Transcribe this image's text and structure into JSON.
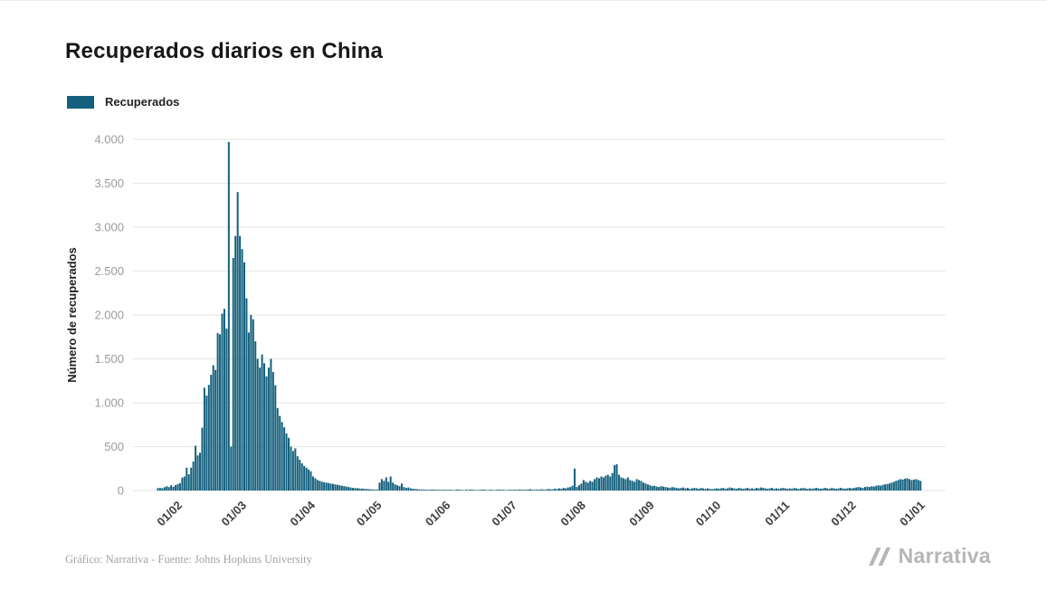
{
  "page": {
    "background": "#ffffff"
  },
  "header": {
    "title": "Recuperados diarios en China"
  },
  "legend": {
    "items": [
      {
        "label": "Recuperados",
        "color": "#14607e"
      }
    ]
  },
  "footer": {
    "credit": "Gráfico: Narrativa - Fuente: Johns Hopkins University"
  },
  "branding": {
    "logo_text": "Narrativa"
  },
  "chart_data": {
    "type": "bar",
    "title": "Recuperados diarios en China",
    "xlabel": "",
    "ylabel": "Número de recuperados",
    "ylim": [
      0,
      4000
    ],
    "grid": "horizontal",
    "legend_position": "top-left",
    "bar_color": "#14607e",
    "x_unit": "day",
    "y_ticks": [
      {
        "value": 0,
        "label": "0"
      },
      {
        "value": 500,
        "label": "500"
      },
      {
        "value": 1000,
        "label": "1.000"
      },
      {
        "value": 1500,
        "label": "1.500"
      },
      {
        "value": 2000,
        "label": "2.000"
      },
      {
        "value": 2500,
        "label": "2.500"
      },
      {
        "value": 3000,
        "label": "3.000"
      },
      {
        "value": 3500,
        "label": "3.500"
      },
      {
        "value": 4000,
        "label": "4.000"
      }
    ],
    "x_ticks": [
      {
        "index": 11,
        "label": "01/02"
      },
      {
        "index": 40,
        "label": "01/03"
      },
      {
        "index": 71,
        "label": "01/04"
      },
      {
        "index": 101,
        "label": "01/05"
      },
      {
        "index": 132,
        "label": "01/06"
      },
      {
        "index": 162,
        "label": "01/07"
      },
      {
        "index": 193,
        "label": "01/08"
      },
      {
        "index": 224,
        "label": "01/09"
      },
      {
        "index": 254,
        "label": "01/10"
      },
      {
        "index": 285,
        "label": "01/11"
      },
      {
        "index": 315,
        "label": "01/12"
      },
      {
        "index": 346,
        "label": "01/01"
      }
    ],
    "series": [
      {
        "name": "Recuperados",
        "values": [
          0,
          28,
          30,
          26,
          38,
          49,
          39,
          60,
          43,
          62,
          72,
          85,
          147,
          160,
          260,
          185,
          260,
          330,
          510,
          400,
          430,
          716,
          1171,
          1081,
          1203,
          1318,
          1427,
          1373,
          1795,
          1779,
          2015,
          2070,
          1844,
          3970,
          500,
          2650,
          2900,
          3400,
          2900,
          2750,
          2600,
          2190,
          1800,
          2000,
          1950,
          1700,
          1500,
          1400,
          1550,
          1450,
          1300,
          1400,
          1500,
          1350,
          1200,
          940,
          850,
          780,
          720,
          650,
          600,
          500,
          450,
          480,
          390,
          350,
          310,
          280,
          260,
          240,
          220,
          160,
          140,
          120,
          110,
          100,
          95,
          90,
          85,
          80,
          75,
          70,
          65,
          60,
          55,
          50,
          45,
          40,
          35,
          30,
          28,
          26,
          24,
          22,
          20,
          18,
          16,
          14,
          12,
          10,
          10,
          90,
          130,
          110,
          150,
          100,
          160,
          90,
          70,
          60,
          50,
          80,
          40,
          30,
          35,
          25,
          20,
          18,
          15,
          12,
          10,
          12,
          10,
          8,
          10,
          12,
          10,
          8,
          10,
          8,
          10,
          8,
          8,
          10,
          6,
          8,
          12,
          10,
          8,
          6,
          10,
          8,
          12,
          10,
          8,
          6,
          8,
          10,
          12,
          8,
          6,
          10,
          8,
          6,
          10,
          12,
          8,
          10,
          6,
          8,
          10,
          8,
          10,
          8,
          12,
          10,
          8,
          10,
          12,
          15,
          10,
          8,
          12,
          10,
          15,
          12,
          10,
          18,
          15,
          12,
          20,
          18,
          25,
          20,
          30,
          25,
          35,
          40,
          55,
          250,
          40,
          60,
          80,
          120,
          100,
          90,
          110,
          100,
          130,
          150,
          140,
          160,
          150,
          170,
          180,
          160,
          200,
          290,
          300,
          180,
          150,
          140,
          130,
          150,
          120,
          110,
          100,
          130,
          120,
          110,
          90,
          80,
          70,
          60,
          50,
          55,
          45,
          40,
          50,
          45,
          40,
          35,
          30,
          40,
          35,
          30,
          25,
          30,
          35,
          25,
          30,
          20,
          25,
          30,
          25,
          20,
          30,
          25,
          20,
          25,
          20,
          15,
          20,
          25,
          20,
          25,
          30,
          20,
          25,
          35,
          30,
          25,
          20,
          30,
          25,
          20,
          25,
          30,
          20,
          25,
          20,
          30,
          25,
          35,
          30,
          25,
          20,
          25,
          30,
          20,
          25,
          20,
          25,
          30,
          25,
          20,
          25,
          20,
          30,
          25,
          20,
          25,
          30,
          25,
          20,
          25,
          20,
          25,
          30,
          25,
          20,
          25,
          30,
          25,
          20,
          30,
          25,
          20,
          25,
          30,
          25,
          20,
          25,
          30,
          25,
          30,
          35,
          40,
          35,
          30,
          40,
          45,
          40,
          50,
          45,
          55,
          60,
          55,
          65,
          70,
          75,
          80,
          90,
          100,
          110,
          120,
          130,
          125,
          135,
          140,
          130,
          120,
          125,
          130,
          120,
          110
        ]
      }
    ]
  }
}
